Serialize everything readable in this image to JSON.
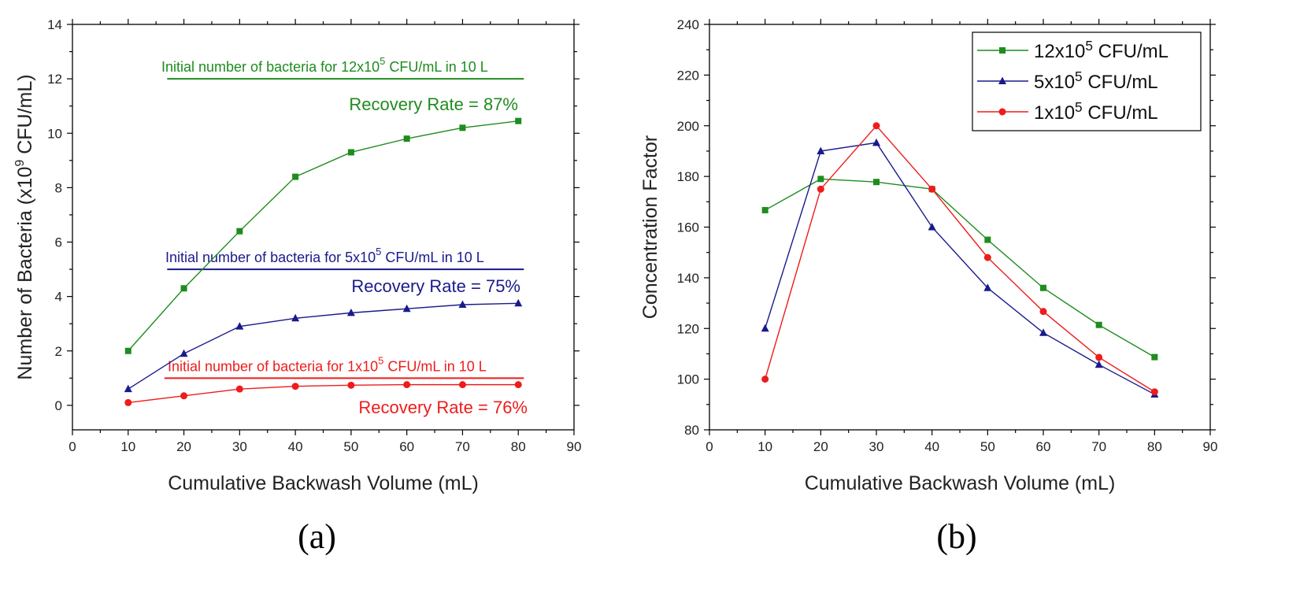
{
  "colors": {
    "green": "#1e8c1e",
    "blue": "#1a1a8c",
    "red": "#ee1c1c",
    "axis": "#000000"
  },
  "chart_data": [
    {
      "type": "line",
      "panel_label": "(a)",
      "xlabel": "Cumulative Backwash Volume (mL)",
      "ylabel": {
        "pre": "Number of Bacteria (x10",
        "sup": "9",
        "post": " CFU/mL)"
      },
      "xlim": [
        0,
        90
      ],
      "ylim": [
        -0.9,
        14
      ],
      "xticks": [
        "0",
        "10",
        "20",
        "30",
        "40",
        "50",
        "60",
        "70",
        "80",
        "90"
      ],
      "yticks": [
        "0",
        "2",
        "4",
        "6",
        "8",
        "10",
        "12",
        "14"
      ],
      "series": [
        {
          "name": "12x10^5 CFU/mL",
          "color": "#1e8c1e",
          "marker": "square",
          "x": [
            10,
            20,
            30,
            40,
            50,
            60,
            70,
            80
          ],
          "y": [
            2.0,
            4.3,
            6.4,
            8.4,
            9.3,
            9.8,
            10.2,
            10.45
          ]
        },
        {
          "name": "5x10^5 CFU/mL",
          "color": "#1a1a8c",
          "marker": "triangle",
          "x": [
            10,
            20,
            30,
            40,
            50,
            60,
            70,
            80
          ],
          "y": [
            0.6,
            1.9,
            2.9,
            3.2,
            3.4,
            3.55,
            3.7,
            3.75
          ]
        },
        {
          "name": "1x10^5 CFU/mL",
          "color": "#ee1c1c",
          "marker": "circle",
          "x": [
            10,
            20,
            30,
            40,
            50,
            60,
            70,
            80
          ],
          "y": [
            0.1,
            0.35,
            0.6,
            0.7,
            0.74,
            0.76,
            0.76,
            0.76
          ]
        }
      ],
      "reference_lines": [
        {
          "y": 12,
          "x_start": 17,
          "x_end": 81,
          "color": "#1e8c1e",
          "label_pre": "Initial number of bacteria for 12x10",
          "label_sup": "5",
          "label_post": " CFU/mL in 10 L",
          "recovery": "Recovery Rate = 87%"
        },
        {
          "y": 5,
          "x_start": 17,
          "x_end": 81,
          "color": "#1a1a8c",
          "label_pre": "Initial number of bacteria for 5x10",
          "label_sup": "5",
          "label_post": " CFU/mL in 10 L",
          "recovery": "Recovery Rate = 75%"
        },
        {
          "y": 1,
          "x_start": 16.5,
          "x_end": 81,
          "color": "#ee1c1c",
          "label_pre": "Initial number of bacteria for 1x10",
          "label_sup": "5",
          "label_post": " CFU/mL in 10 L",
          "recovery": "Recovery Rate = 76%"
        }
      ]
    },
    {
      "type": "line",
      "panel_label": "(b)",
      "xlabel": "Cumulative Backwash Volume (mL)",
      "ylabel": "Concentration Factor",
      "xlim": [
        0,
        90
      ],
      "ylim": [
        80,
        240
      ],
      "xticks": [
        "0",
        "10",
        "20",
        "30",
        "40",
        "50",
        "60",
        "70",
        "80",
        "90"
      ],
      "yticks": [
        "80",
        "100",
        "120",
        "140",
        "160",
        "180",
        "200",
        "220",
        "240"
      ],
      "legend": "top-right",
      "series": [
        {
          "name_pre": "12x10",
          "name_sup": "5",
          "name_post": " CFU/mL",
          "color": "#1e8c1e",
          "marker": "square",
          "x": [
            10,
            20,
            30,
            40,
            50,
            60,
            70,
            80
          ],
          "y": [
            166.7,
            179,
            177.8,
            175,
            155,
            136,
            121.4,
            108.7
          ]
        },
        {
          "name_pre": "5x10",
          "name_sup": "5",
          "name_post": " CFU/mL",
          "color": "#1a1a8c",
          "marker": "triangle",
          "x": [
            10,
            20,
            30,
            40,
            50,
            60,
            70,
            80
          ],
          "y": [
            120,
            190,
            193.3,
            160,
            136,
            118.3,
            105.7,
            94
          ]
        },
        {
          "name_pre": "1x10",
          "name_sup": "5",
          "name_post": " CFU/mL",
          "color": "#ee1c1c",
          "marker": "circle",
          "x": [
            10,
            20,
            30,
            40,
            50,
            60,
            70,
            80
          ],
          "y": [
            100,
            175,
            200,
            175,
            148,
            126.7,
            108.6,
            95
          ]
        }
      ]
    }
  ]
}
